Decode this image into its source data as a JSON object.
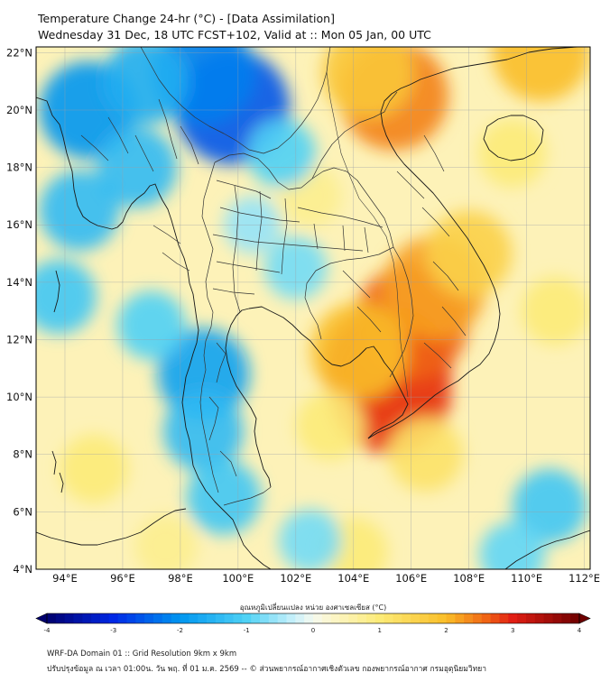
{
  "title": {
    "line1": "Temperature Change 24-hr (°C) - [Data Assimilation]",
    "line2": "Wednesday 31 Dec, 18 UTC FCST+102, Valid at :: Mon 05 Jan, 00 UTC"
  },
  "map": {
    "lon_range": [
      93,
      112.2
    ],
    "lat_range": [
      4,
      22.2
    ],
    "lat_ticks": [
      {
        "value": 22,
        "label": "22°N"
      },
      {
        "value": 20,
        "label": "20°N"
      },
      {
        "value": 18,
        "label": "18°N"
      },
      {
        "value": 16,
        "label": "16°N"
      },
      {
        "value": 14,
        "label": "14°N"
      },
      {
        "value": 12,
        "label": "12°N"
      },
      {
        "value": 10,
        "label": "10°N"
      },
      {
        "value": 8,
        "label": "8°N"
      },
      {
        "value": 6,
        "label": "6°N"
      },
      {
        "value": 4,
        "label": "4°N"
      }
    ],
    "lon_ticks": [
      {
        "value": 94,
        "label": "94°E"
      },
      {
        "value": 96,
        "label": "96°E"
      },
      {
        "value": 98,
        "label": "98°E"
      },
      {
        "value": 100,
        "label": "100°E"
      },
      {
        "value": 102,
        "label": "102°E"
      },
      {
        "value": 104,
        "label": "104°E"
      },
      {
        "value": 106,
        "label": "106°E"
      },
      {
        "value": 108,
        "label": "108°E"
      },
      {
        "value": 110,
        "label": "110°E"
      },
      {
        "value": 112,
        "label": "112°E"
      }
    ],
    "anomalies": [
      {
        "lon": 105.2,
        "lat": 11.0,
        "value": 3.0
      },
      {
        "lon": 105.3,
        "lat": 10.1,
        "value": 2.8
      },
      {
        "lon": 106.0,
        "lat": 12.6,
        "value": 2.6
      },
      {
        "lon": 106.8,
        "lat": 13.8,
        "value": 2.2
      },
      {
        "lon": 104.2,
        "lat": 11.6,
        "value": 2.0
      },
      {
        "lon": 105.4,
        "lat": 20.5,
        "value": 2.4
      },
      {
        "lon": 104.5,
        "lat": 21.3,
        "value": 1.8
      },
      {
        "lon": 110.5,
        "lat": 22.0,
        "value": 2.0
      },
      {
        "lon": 108.0,
        "lat": 15.0,
        "value": 1.6
      },
      {
        "lon": 106.5,
        "lat": 8.0,
        "value": 1.2
      },
      {
        "lon": 103.2,
        "lat": 9.0,
        "value": 1.0
      },
      {
        "lon": 109.5,
        "lat": 18.5,
        "value": 1.0
      },
      {
        "lon": 111.0,
        "lat": 13.0,
        "value": 1.0
      },
      {
        "lon": 95.0,
        "lat": 7.5,
        "value": 1.0
      },
      {
        "lon": 97.5,
        "lat": 4.8,
        "value": 0.8
      },
      {
        "lon": 104.0,
        "lat": 4.6,
        "value": 1.0
      },
      {
        "lon": 102.5,
        "lat": 17.0,
        "value": 0.8
      },
      {
        "lon": 99.8,
        "lat": 20.1,
        "value": -2.6
      },
      {
        "lon": 98.8,
        "lat": 21.3,
        "value": -2.2
      },
      {
        "lon": 94.8,
        "lat": 20.0,
        "value": -2.0
      },
      {
        "lon": 96.8,
        "lat": 21.0,
        "value": -1.6
      },
      {
        "lon": 94.5,
        "lat": 16.5,
        "value": -1.4
      },
      {
        "lon": 96.5,
        "lat": 18.0,
        "value": -1.4
      },
      {
        "lon": 93.8,
        "lat": 13.5,
        "value": -1.2
      },
      {
        "lon": 98.8,
        "lat": 10.8,
        "value": -1.8
      },
      {
        "lon": 98.8,
        "lat": 8.8,
        "value": -1.4
      },
      {
        "lon": 99.5,
        "lat": 6.5,
        "value": -1.2
      },
      {
        "lon": 97.0,
        "lat": 12.5,
        "value": -1.0
      },
      {
        "lon": 101.5,
        "lat": 18.5,
        "value": -1.0
      },
      {
        "lon": 102.0,
        "lat": 14.5,
        "value": -0.8
      },
      {
        "lon": 102.5,
        "lat": 5.0,
        "value": -0.8
      },
      {
        "lon": 110.8,
        "lat": 6.2,
        "value": -1.2
      },
      {
        "lon": 109.5,
        "lat": 4.5,
        "value": -0.9
      },
      {
        "lon": 100.5,
        "lat": 16.0,
        "value": -0.6
      }
    ]
  },
  "colorbar": {
    "label": "อุณหภูมิเปลี่ยนแปลง หน่วย องศาเซลเซียส (°C)",
    "min": -4,
    "max": 4,
    "steps": 60,
    "ticks": [
      {
        "value": -4,
        "label": "-4"
      },
      {
        "value": -3,
        "label": "-3"
      },
      {
        "value": -2,
        "label": "-2"
      },
      {
        "value": -1,
        "label": "-1"
      },
      {
        "value": 0,
        "label": "0"
      },
      {
        "value": 1,
        "label": "1"
      },
      {
        "value": 2,
        "label": "2"
      },
      {
        "value": 3,
        "label": "3"
      },
      {
        "value": 4,
        "label": "4"
      }
    ]
  },
  "footer": {
    "line1": "WRF-DA Domain 01 :: Grid Resolution 9km x 9km",
    "line2": "ปรับปรุงข้อมูล ณ เวลา 01:00น. วัน พฤ. ที่ 01 ม.ค. 2569 -- © ส่วนพยากรณ์อากาศเชิงตัวเลข กองพยากรณ์อากาศ กรมอุตุนิยมวิทยา"
  }
}
